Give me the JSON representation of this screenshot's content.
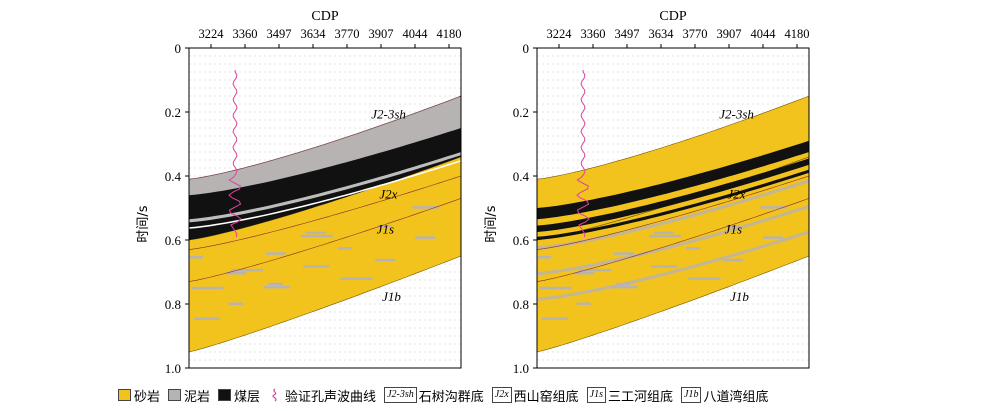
{
  "axes": {
    "cdp_title": "CDP",
    "cdp_ticks": [
      "3224",
      "3360",
      "3497",
      "3634",
      "3770",
      "3907",
      "4044",
      "4180"
    ],
    "time_label": "时间/s",
    "time_ticks": [
      "0",
      "0.2",
      "0.4",
      "0.6",
      "0.8",
      "1.0"
    ]
  },
  "panels": [
    {
      "id": "left",
      "labels": {
        "shihegou": "J2-3sh",
        "xishanyao": "J2x",
        "sangonghe": "J1s",
        "badaowan": "J1b"
      }
    },
    {
      "id": "right",
      "labels": {
        "shihegou": "J2-3sh",
        "xishanyao": "J2x",
        "sangonghe": "J1s",
        "badaowan": "J1b"
      }
    }
  ],
  "legend": {
    "sandstone": "砂岩",
    "mudstone": "泥岩",
    "coal": "煤层",
    "sonic_curve": "验证孔声波曲线",
    "shihegou_symbol": "J2-3sh",
    "shihegou_text": "石树沟群底",
    "xishanyao_symbol": "J2x",
    "xishanyao_text": "西山窑组底",
    "sangonghe_symbol": "J1s",
    "sangonghe_text": "三工河组底",
    "badaowan_symbol": "J1b",
    "badaowan_text": "八道湾组底"
  },
  "colors": {
    "sandstone": "#f2c31c",
    "mudstone": "#b7b3b3",
    "coal": "#111111",
    "sonic_curve": "#e040a0",
    "horizon": "#8a2a2a"
  }
}
